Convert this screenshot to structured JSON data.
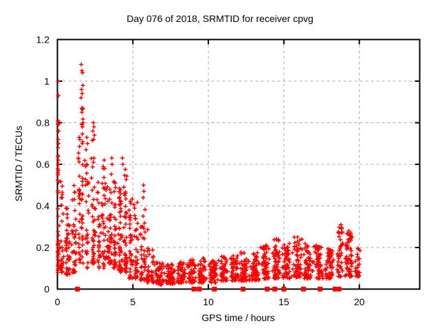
{
  "chart_data": {
    "type": "scatter",
    "title": "Day 076 of 2018, SRMTID for receiver cpvg",
    "xlabel": "GPS time / hours",
    "ylabel": "SRMTID / TECUs",
    "xlim": [
      0,
      24
    ],
    "ylim": [
      0,
      1.2
    ],
    "xticks": [
      {
        "v": 0,
        "label": "0"
      },
      {
        "v": 5,
        "label": "5"
      },
      {
        "v": 10,
        "label": "10"
      },
      {
        "v": 15,
        "label": "15"
      },
      {
        "v": 20,
        "label": "20"
      }
    ],
    "yticks": [
      {
        "v": 0,
        "label": "0"
      },
      {
        "v": 0.2,
        "label": "0.2"
      },
      {
        "v": 0.4,
        "label": "0.4"
      },
      {
        "v": 0.6,
        "label": "0.6"
      },
      {
        "v": 0.8,
        "label": "0.8"
      },
      {
        "v": 1,
        "label": "1"
      },
      {
        "v": 1.2,
        "label": "1.2"
      }
    ],
    "grid": true,
    "legend": null,
    "marker": {
      "shape": "plus",
      "color": "#ff0000",
      "size": 7
    },
    "zero_marker": {
      "shape": "filled-square",
      "color": "#ff0000",
      "size": 7
    },
    "colors": {
      "grid": "#a8a8a8",
      "axis": "#000000",
      "background": "#ffffff",
      "text": "#000000"
    },
    "seed": 2018076,
    "x_data_max": 20.25,
    "y_data_max": 1.08,
    "notable_points": [
      [
        0.05,
        1.0
      ],
      [
        0.07,
        0.93
      ],
      [
        0.04,
        0.81
      ],
      [
        0.06,
        0.79
      ],
      [
        0.05,
        0.76
      ],
      [
        0.05,
        0.72
      ],
      [
        0.07,
        0.7
      ],
      [
        0.04,
        0.68
      ],
      [
        0.06,
        0.62
      ],
      [
        0.05,
        0.6
      ],
      [
        0.06,
        0.57
      ],
      [
        0.05,
        0.55
      ],
      [
        1.58,
        1.08
      ],
      [
        1.62,
        1.05
      ],
      [
        1.66,
        1.04
      ],
      [
        1.6,
        0.96
      ],
      [
        1.64,
        0.94
      ],
      [
        1.57,
        0.92
      ],
      [
        1.68,
        0.87
      ],
      [
        1.62,
        0.85
      ],
      [
        1.7,
        0.8
      ],
      [
        1.66,
        0.78
      ],
      [
        1.45,
        0.73
      ],
      [
        1.48,
        0.72
      ],
      [
        1.95,
        0.73
      ],
      [
        2.0,
        0.7
      ],
      [
        1.9,
        0.67
      ],
      [
        2.38,
        0.8
      ],
      [
        2.42,
        0.78
      ],
      [
        2.35,
        0.76
      ],
      [
        2.45,
        0.74
      ],
      [
        2.4,
        0.72
      ],
      [
        2.42,
        0.63
      ],
      [
        2.38,
        0.61
      ],
      [
        3.1,
        0.62
      ],
      [
        3.14,
        0.58
      ],
      [
        3.6,
        0.63
      ],
      [
        3.62,
        0.6
      ],
      [
        4.3,
        0.63
      ],
      [
        4.33,
        0.6
      ],
      [
        4.4,
        0.49
      ],
      [
        4.42,
        0.46
      ],
      [
        5.7,
        0.5
      ],
      [
        5.73,
        0.47
      ],
      [
        5.68,
        0.44
      ],
      [
        13.85,
        0.21
      ],
      [
        14.5,
        0.24
      ],
      [
        15.9,
        0.25
      ],
      [
        16.2,
        0.24
      ],
      [
        18.78,
        0.31
      ],
      [
        18.82,
        0.29
      ],
      [
        18.8,
        0.27
      ],
      [
        19.3,
        0.27
      ],
      [
        19.45,
        0.26
      ],
      [
        19.52,
        0.25
      ],
      [
        19.38,
        0.24
      ]
    ],
    "zero_points_x": [
      1.33,
      9.05,
      9.4,
      10.4,
      12.3,
      13.9,
      14.4,
      15.0,
      16.3,
      17.4,
      18.4,
      18.65
    ],
    "clusters_key": [
      "x_center",
      "x_half_width",
      "count",
      "y_min",
      "y_max",
      "pow"
    ],
    "clusters": [
      [
        0.05,
        0.07,
        40,
        0.08,
        0.82,
        2.0
      ],
      [
        0.3,
        0.15,
        28,
        0.08,
        0.6,
        2.0
      ],
      [
        0.7,
        0.2,
        45,
        0.07,
        0.42,
        1.8
      ],
      [
        1.1,
        0.2,
        40,
        0.08,
        0.5,
        1.8
      ],
      [
        1.45,
        0.1,
        25,
        0.1,
        0.75,
        1.5
      ],
      [
        1.65,
        0.1,
        30,
        0.12,
        1.0,
        1.4
      ],
      [
        1.95,
        0.15,
        28,
        0.1,
        0.7,
        1.7
      ],
      [
        2.4,
        0.18,
        40,
        0.12,
        0.76,
        1.8
      ],
      [
        2.75,
        0.15,
        28,
        0.1,
        0.52,
        1.6
      ],
      [
        3.1,
        0.2,
        35,
        0.1,
        0.6,
        1.6
      ],
      [
        3.45,
        0.2,
        45,
        0.12,
        0.58,
        1.7
      ],
      [
        3.8,
        0.15,
        35,
        0.1,
        0.52,
        1.6
      ],
      [
        4.15,
        0.2,
        45,
        0.08,
        0.5,
        1.5
      ],
      [
        4.5,
        0.15,
        40,
        0.08,
        0.6,
        1.6
      ],
      [
        4.85,
        0.15,
        35,
        0.05,
        0.45,
        1.5
      ],
      [
        5.2,
        0.2,
        35,
        0.05,
        0.42,
        1.7
      ],
      [
        5.55,
        0.12,
        22,
        0.04,
        0.3,
        1.7
      ],
      [
        5.75,
        0.1,
        22,
        0.04,
        0.48,
        1.8
      ],
      [
        6.0,
        0.12,
        20,
        0.03,
        0.3,
        1.8
      ],
      [
        6.3,
        0.15,
        18,
        0.03,
        0.2,
        1.8
      ],
      [
        6.8,
        0.35,
        55,
        0.02,
        0.13,
        1.4
      ],
      [
        7.5,
        0.35,
        55,
        0.025,
        0.12,
        1.4
      ],
      [
        8.2,
        0.35,
        55,
        0.03,
        0.13,
        1.4
      ],
      [
        8.9,
        0.35,
        50,
        0.03,
        0.14,
        1.4
      ],
      [
        9.6,
        0.35,
        50,
        0.03,
        0.15,
        1.4
      ],
      [
        10.3,
        0.35,
        50,
        0.03,
        0.14,
        1.4
      ],
      [
        11.0,
        0.35,
        50,
        0.04,
        0.16,
        1.4
      ],
      [
        11.7,
        0.35,
        50,
        0.04,
        0.16,
        1.4
      ],
      [
        12.4,
        0.35,
        55,
        0.04,
        0.18,
        1.5
      ],
      [
        13.1,
        0.35,
        55,
        0.04,
        0.18,
        1.5
      ],
      [
        13.8,
        0.35,
        55,
        0.05,
        0.21,
        1.5
      ],
      [
        14.5,
        0.35,
        55,
        0.05,
        0.24,
        1.5
      ],
      [
        15.2,
        0.35,
        55,
        0.05,
        0.22,
        1.5
      ],
      [
        15.9,
        0.35,
        55,
        0.05,
        0.25,
        1.5
      ],
      [
        16.6,
        0.35,
        55,
        0.05,
        0.22,
        1.5
      ],
      [
        17.3,
        0.35,
        55,
        0.05,
        0.22,
        1.5
      ],
      [
        18.0,
        0.35,
        50,
        0.05,
        0.2,
        1.4
      ],
      [
        18.7,
        0.25,
        40,
        0.06,
        0.3,
        1.4
      ],
      [
        19.3,
        0.3,
        55,
        0.06,
        0.28,
        1.3
      ],
      [
        19.9,
        0.2,
        30,
        0.06,
        0.2,
        1.4
      ]
    ]
  }
}
